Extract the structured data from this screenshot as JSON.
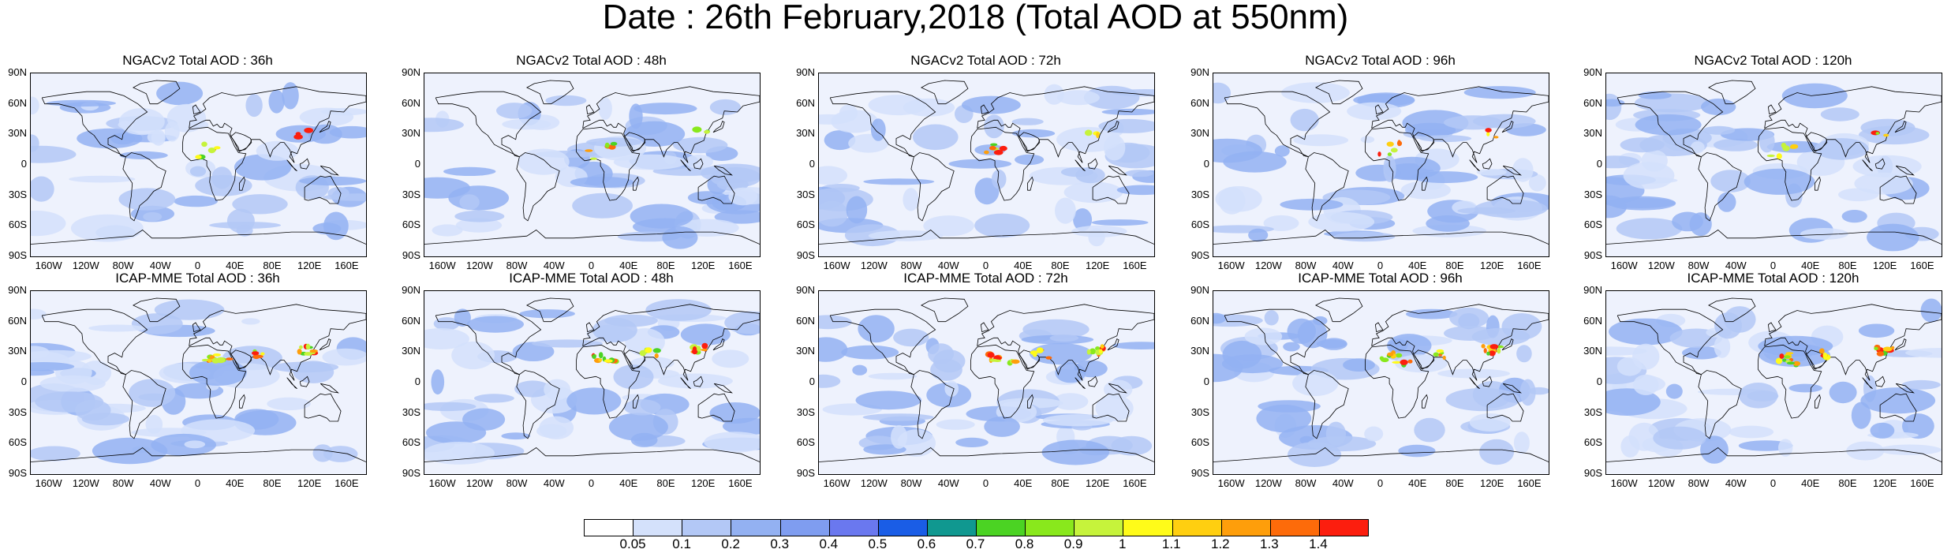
{
  "title": "Date : 26th February,2018 (Total AOD at 550nm)",
  "lat_ticks": [
    "90N",
    "60N",
    "30N",
    "0",
    "30S",
    "60S",
    "90S"
  ],
  "lon_ticks": [
    "160W",
    "120W",
    "80W",
    "40W",
    "0",
    "40E",
    "80E",
    "120E",
    "160E"
  ],
  "lon_values": [
    -160,
    -120,
    -80,
    -40,
    0,
    40,
    80,
    120,
    160
  ],
  "lat_values": [
    90,
    60,
    30,
    0,
    -30,
    -60,
    -90
  ],
  "rows": [
    {
      "model": "NGACv2",
      "panels": [
        {
          "title": "NGACv2 Total AOD : 36h",
          "forecast_hour": "36h"
        },
        {
          "title": "NGACv2 Total AOD : 48h",
          "forecast_hour": "48h"
        },
        {
          "title": "NGACv2 Total AOD : 72h",
          "forecast_hour": "72h"
        },
        {
          "title": "NGACv2 Total AOD : 96h",
          "forecast_hour": "96h"
        },
        {
          "title": "NGACv2 Total AOD : 120h",
          "forecast_hour": "120h"
        }
      ]
    },
    {
      "model": "ICAP-MME",
      "panels": [
        {
          "title": "ICAP-MME Total AOD : 36h",
          "forecast_hour": "36h"
        },
        {
          "title": "ICAP-MME Total AOD : 48h",
          "forecast_hour": "48h"
        },
        {
          "title": "ICAP-MME Total AOD : 72h",
          "forecast_hour": "72h"
        },
        {
          "title": "ICAP-MME Total AOD : 96h",
          "forecast_hour": "96h"
        },
        {
          "title": "ICAP-MME Total AOD : 120h",
          "forecast_hour": "120h"
        }
      ]
    }
  ],
  "colorbar": {
    "labels": [
      "0.05",
      "0.1",
      "0.2",
      "0.3",
      "0.4",
      "0.5",
      "0.6",
      "0.7",
      "0.8",
      "0.9",
      "1",
      "1.1",
      "1.2",
      "1.3",
      "1.4"
    ],
    "colors": [
      "#ffffff",
      "#d4e1fb",
      "#b3c8f6",
      "#93b1f2",
      "#7f9df0",
      "#6a78ef",
      "#1a5de6",
      "#109890",
      "#4bd323",
      "#89e81c",
      "#c6f33b",
      "#fffb19",
      "#ffcf10",
      "#fe9e0b",
      "#fd6b0a",
      "#fc1e0e"
    ]
  },
  "map_colors": {
    "ocean": "#eef2fd",
    "land": "#c9d7f8",
    "land_dark": "#a9bff3",
    "coast": "#000000"
  }
}
